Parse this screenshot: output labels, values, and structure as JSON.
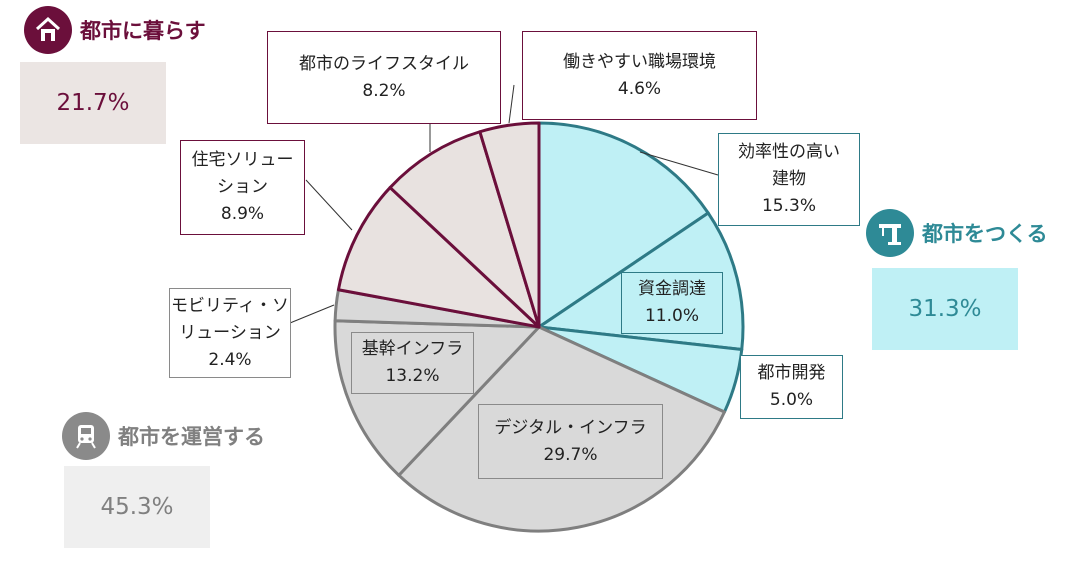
{
  "chart_data": {
    "type": "pie",
    "slices": [
      {
        "label": "効率性の高い建物",
        "value": 15.3,
        "group": "make"
      },
      {
        "label": "資金調達",
        "value": 11.0,
        "group": "make"
      },
      {
        "label": "都市開発",
        "value": 5.0,
        "group": "make"
      },
      {
        "label": "デジタル・インフラ",
        "value": 29.7,
        "group": "operate"
      },
      {
        "label": "基幹インフラ",
        "value": 13.2,
        "group": "operate"
      },
      {
        "label": "モビリティ・ソリューション",
        "value": 2.4,
        "group": "operate"
      },
      {
        "label": "住宅ソリューション",
        "value": 8.9,
        "group": "live"
      },
      {
        "label": "都市のライフスタイル",
        "value": 8.2,
        "group": "live"
      },
      {
        "label": "働きやすい職場環境",
        "value": 4.6,
        "group": "live"
      }
    ],
    "groups": [
      {
        "key": "live",
        "label": "都市に暮らす",
        "value": "21.7%",
        "fill": "#e8e2e0",
        "edge": "#6b0f3b"
      },
      {
        "key": "make",
        "label": "都市をつくる",
        "value": "31.3%",
        "fill": "#bff0f5",
        "edge": "#2e7a86"
      },
      {
        "key": "operate",
        "label": "都市を運営する",
        "value": "45.3%",
        "fill": "#d9d9d9",
        "edge": "#7f7f7f"
      }
    ]
  },
  "labels": {
    "efficient_buildings": {
      "name_line1": "効率性の高い",
      "name_line2": "建物",
      "pct": "15.3%"
    },
    "finance": {
      "name": "資金調達",
      "pct": "11.0%"
    },
    "urban_dev": {
      "name": "都市開発",
      "pct": "5.0%"
    },
    "digital": {
      "name": "デジタル・インフラ",
      "pct": "29.7%"
    },
    "core_infra": {
      "name": "基幹インフラ",
      "pct": "13.2%"
    },
    "mobility": {
      "name_line1": "モビリティ・ソ",
      "name_line2": "リューション",
      "pct": "2.4%"
    },
    "housing": {
      "name_line1": "住宅ソリュー",
      "name_line2": "ション",
      "pct": "8.9%"
    },
    "lifestyle": {
      "name": "都市のライフスタイル",
      "pct": "8.2%"
    },
    "workplace": {
      "name": "働きやすい職場環境",
      "pct": "4.6%"
    }
  },
  "categories": {
    "live": {
      "label": "都市に暮らす",
      "pct": "21.7%",
      "icon": "house-icon",
      "color": "#6b0f3b",
      "bg": "#ebe5e3"
    },
    "make": {
      "label": "都市をつくる",
      "pct": "31.3%",
      "icon": "crane-icon",
      "color": "#2e8a96",
      "bg": "#bff0f5"
    },
    "operate": {
      "label": "都市を運営する",
      "pct": "45.3%",
      "icon": "train-icon",
      "color": "#808080",
      "bg": "#efefef"
    }
  }
}
